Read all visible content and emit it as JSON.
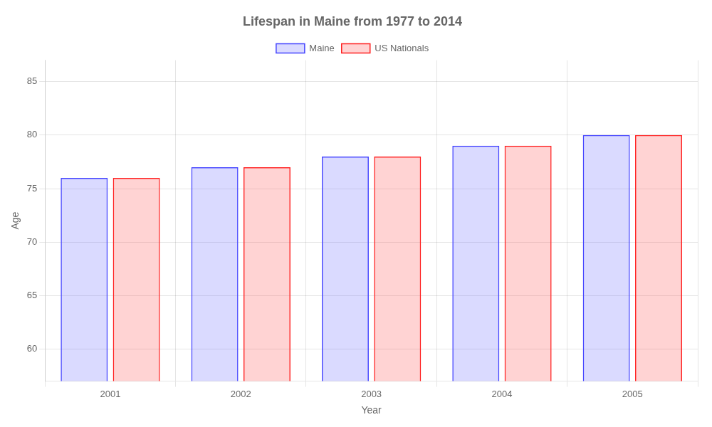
{
  "chart_data": {
    "type": "bar",
    "title": "Lifespan in Maine from 1977 to 2014",
    "xlabel": "Year",
    "ylabel": "Age",
    "categories": [
      "2001",
      "2002",
      "2003",
      "2004",
      "2005"
    ],
    "series": [
      {
        "name": "Maine",
        "color": "#4444ff",
        "values": [
          76,
          77,
          78,
          79,
          80
        ]
      },
      {
        "name": "US Nationals",
        "color": "#ff2222",
        "values": [
          76,
          77,
          78,
          79,
          80
        ]
      }
    ],
    "ylim": [
      57,
      87
    ],
    "yticks": [
      60,
      65,
      70,
      75,
      80,
      85
    ],
    "grid": true,
    "legend": "top"
  }
}
